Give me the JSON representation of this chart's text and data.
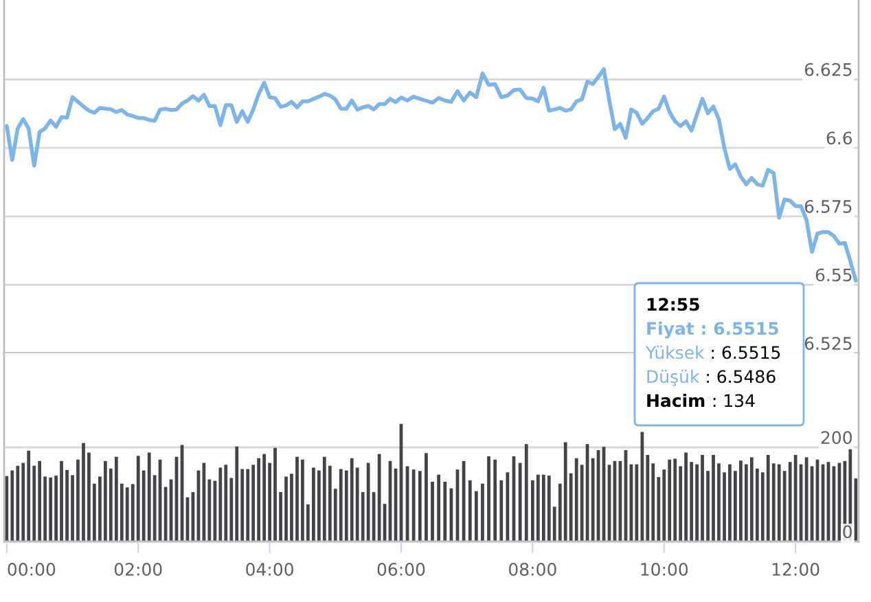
{
  "chart_data": [
    {
      "type": "line",
      "x": [
        0,
        0.083,
        0.167,
        0.25,
        0.333,
        0.417,
        0.5,
        0.583,
        0.667,
        0.75,
        0.833,
        0.917,
        1,
        1.083,
        1.167,
        1.25,
        1.333,
        1.417,
        1.5,
        1.583,
        1.667,
        1.75,
        1.833,
        1.917,
        2,
        2.083,
        2.167,
        2.25,
        2.333,
        2.417,
        2.5,
        2.583,
        2.667,
        2.75,
        2.833,
        2.917,
        3,
        3.083,
        3.167,
        3.25,
        3.333,
        3.417,
        3.5,
        3.583,
        3.667,
        3.75,
        3.833,
        3.917,
        4,
        4.083,
        4.167,
        4.25,
        4.333,
        4.417,
        4.5,
        4.583,
        4.667,
        4.75,
        4.833,
        4.917,
        5,
        5.083,
        5.167,
        5.25,
        5.333,
        5.417,
        5.5,
        5.583,
        5.667,
        5.75,
        5.833,
        5.917,
        6,
        6.095,
        6.19,
        6.286,
        6.381,
        6.476,
        6.571,
        6.667,
        6.762,
        6.857,
        6.952,
        7.048,
        7.143,
        7.238,
        7.333,
        7.429,
        7.524,
        7.619,
        7.714,
        7.81,
        7.905,
        8,
        8.083,
        8.167,
        8.25,
        8.333,
        8.417,
        8.5,
        8.583,
        8.667,
        8.75,
        8.833,
        8.917,
        9,
        9.083,
        9.167,
        9.25,
        9.333,
        9.417,
        9.5,
        9.583,
        9.667,
        9.75,
        9.833,
        9.917,
        10,
        10.083,
        10.167,
        10.25,
        10.333,
        10.417,
        10.5,
        10.583,
        10.667,
        10.75,
        10.833,
        10.917,
        11,
        11.083,
        11.167,
        11.25,
        11.333,
        11.417,
        11.5,
        11.583,
        11.667,
        11.75,
        11.833,
        11.917,
        12,
        12.083,
        12.167,
        12.25,
        12.333,
        12.417,
        12.5,
        12.583,
        12.667,
        12.75,
        12.833,
        12.917
      ],
      "series": [
        {
          "color": "#7cb5ec",
          "values": [
            6.608,
            6.5956,
            6.6071,
            6.6105,
            6.6071,
            6.5935,
            6.6058,
            6.6071,
            6.61,
            6.6077,
            6.6112,
            6.611,
            6.6185,
            6.6168,
            6.6151,
            6.6136,
            6.6128,
            6.6146,
            6.6143,
            6.6141,
            6.6131,
            6.6138,
            6.6122,
            6.6116,
            6.6109,
            6.6109,
            6.6102,
            6.6099,
            6.614,
            6.6143,
            6.6138,
            6.614,
            6.6162,
            6.6173,
            6.6189,
            6.6172,
            6.6194,
            6.6153,
            6.6153,
            6.6083,
            6.6156,
            6.6156,
            6.6095,
            6.6134,
            6.6095,
            6.614,
            6.6197,
            6.6238,
            6.6185,
            6.6182,
            6.615,
            6.6155,
            6.6168,
            6.6148,
            6.617,
            6.617,
            6.6179,
            6.6187,
            6.6197,
            6.6191,
            6.6177,
            6.6143,
            6.6143,
            6.6173,
            6.614,
            6.6148,
            6.6153,
            6.614,
            6.616,
            6.616,
            6.6179,
            6.6167,
            6.6184,
            6.6173,
            6.6187,
            6.6179,
            6.6172,
            6.6165,
            6.6182,
            6.6173,
            6.6168,
            6.6207,
            6.6173,
            6.6202,
            6.6185,
            6.6272,
            6.623,
            6.6233,
            6.6185,
            6.6191,
            6.6211,
            6.6213,
            6.6182,
            6.618,
            6.617,
            6.6219,
            6.6136,
            6.614,
            6.6146,
            6.6136,
            6.614,
            6.617,
            6.6177,
            6.6242,
            6.6233,
            6.6259,
            6.6287,
            6.6173,
            6.6068,
            6.6088,
            6.6037,
            6.614,
            6.6128,
            6.6088,
            6.6109,
            6.6134,
            6.6143,
            6.6187,
            6.6131,
            6.6097,
            6.608,
            6.6097,
            6.6063,
            6.6122,
            6.6179,
            6.6126,
            6.6151,
            6.6105,
            6.6,
            6.5923,
            6.594,
            6.5895,
            6.5867,
            6.589,
            6.5867,
            6.5862,
            6.592,
            6.5908,
            6.5745,
            6.5812,
            6.5807,
            6.5787,
            6.5787,
            6.5737,
            6.562,
            6.5687,
            6.5693,
            6.5692,
            6.5678,
            6.565,
            6.5653,
            6.5587,
            6.5515
          ]
        }
      ],
      "xlim": [
        -0.04,
        12.96
      ],
      "ylim": [
        6.525,
        6.654
      ],
      "yticks": [
        6.525,
        6.55,
        6.575,
        6.6,
        6.625
      ],
      "tick_labels": "y",
      "grid": "y",
      "annotations": [
        "12:55",
        "Fiyat : 6.5515",
        "Yüksek : 6.5515",
        "Düşük : 6.5486",
        "Hacim : 134"
      ]
    },
    {
      "type": "bar",
      "x": [
        0,
        0.083,
        0.167,
        0.25,
        0.333,
        0.417,
        0.5,
        0.583,
        0.667,
        0.75,
        0.833,
        0.917,
        1,
        1.083,
        1.167,
        1.25,
        1.333,
        1.417,
        1.5,
        1.583,
        1.667,
        1.75,
        1.833,
        1.917,
        2,
        2.083,
        2.167,
        2.25,
        2.333,
        2.417,
        2.5,
        2.583,
        2.667,
        2.75,
        2.833,
        2.917,
        3,
        3.083,
        3.167,
        3.25,
        3.333,
        3.417,
        3.5,
        3.583,
        3.667,
        3.75,
        3.833,
        3.917,
        4,
        4.083,
        4.167,
        4.25,
        4.333,
        4.417,
        4.5,
        4.583,
        4.667,
        4.75,
        4.833,
        4.917,
        5,
        5.083,
        5.167,
        5.25,
        5.333,
        5.417,
        5.5,
        5.583,
        5.667,
        5.75,
        5.833,
        5.917,
        6,
        6.095,
        6.19,
        6.286,
        6.381,
        6.476,
        6.571,
        6.667,
        6.762,
        6.857,
        6.952,
        7.048,
        7.143,
        7.238,
        7.333,
        7.429,
        7.524,
        7.619,
        7.714,
        7.81,
        7.905,
        8,
        8.083,
        8.167,
        8.25,
        8.333,
        8.417,
        8.5,
        8.583,
        8.667,
        8.75,
        8.833,
        8.917,
        9,
        9.083,
        9.167,
        9.25,
        9.333,
        9.417,
        9.5,
        9.583,
        9.667,
        9.75,
        9.833,
        9.917,
        10,
        10.083,
        10.167,
        10.25,
        10.333,
        10.417,
        10.5,
        10.583,
        10.667,
        10.75,
        10.833,
        10.917,
        11,
        11.083,
        11.167,
        11.25,
        11.333,
        11.417,
        11.5,
        11.583,
        11.667,
        11.75,
        11.833,
        11.917,
        12,
        12.083,
        12.167,
        12.25,
        12.333,
        12.417,
        12.5,
        12.583,
        12.667,
        12.75,
        12.833,
        12.917
      ],
      "series": [
        {
          "color": "#434348",
          "values": [
            139,
            151,
            161,
            167,
            193,
            161,
            171,
            138,
            136,
            140,
            171,
            152,
            141,
            174,
            209,
            189,
            123,
            138,
            171,
            155,
            180,
            123,
            115,
            122,
            182,
            151,
            189,
            141,
            174,
            116,
            132,
            180,
            205,
            94,
            105,
            151,
            167,
            132,
            129,
            157,
            163,
            135,
            202,
            154,
            154,
            163,
            177,
            186,
            167,
            199,
            105,
            138,
            144,
            180,
            174,
            79,
            157,
            151,
            180,
            161,
            112,
            154,
            151,
            177,
            157,
            105,
            167,
            105,
            186,
            80,
            171,
            155,
            250,
            160,
            153,
            150,
            188,
            127,
            142,
            127,
            113,
            153,
            171,
            130,
            107,
            123,
            181,
            174,
            130,
            147,
            181,
            167,
            207,
            130,
            142,
            142,
            140,
            74,
            123,
            211,
            145,
            177,
            163,
            207,
            177,
            194,
            201,
            163,
            171,
            171,
            194,
            164,
            164,
            233,
            184,
            166,
            137,
            153,
            174,
            176,
            160,
            189,
            169,
            164,
            184,
            150,
            184,
            166,
            147,
            164,
            150,
            172,
            164,
            179,
            155,
            147,
            184,
            166,
            164,
            150,
            169,
            184,
            164,
            179,
            160,
            174,
            164,
            169,
            160,
            167,
            171,
            196,
            134
          ]
        }
      ],
      "xlim": [
        -0.04,
        12.96
      ],
      "xticks": [
        {
          "value": 0,
          "label": "00:00"
        },
        {
          "value": 2,
          "label": "02:00"
        },
        {
          "value": 4,
          "label": "04:00"
        },
        {
          "value": 6,
          "label": "06:00"
        },
        {
          "value": 8,
          "label": "08:00"
        },
        {
          "value": 10,
          "label": "10:00"
        },
        {
          "value": 12,
          "label": "12:00"
        }
      ],
      "ylim": [
        0,
        400
      ],
      "yticks": [
        0,
        200
      ],
      "grid": "y"
    }
  ]
}
